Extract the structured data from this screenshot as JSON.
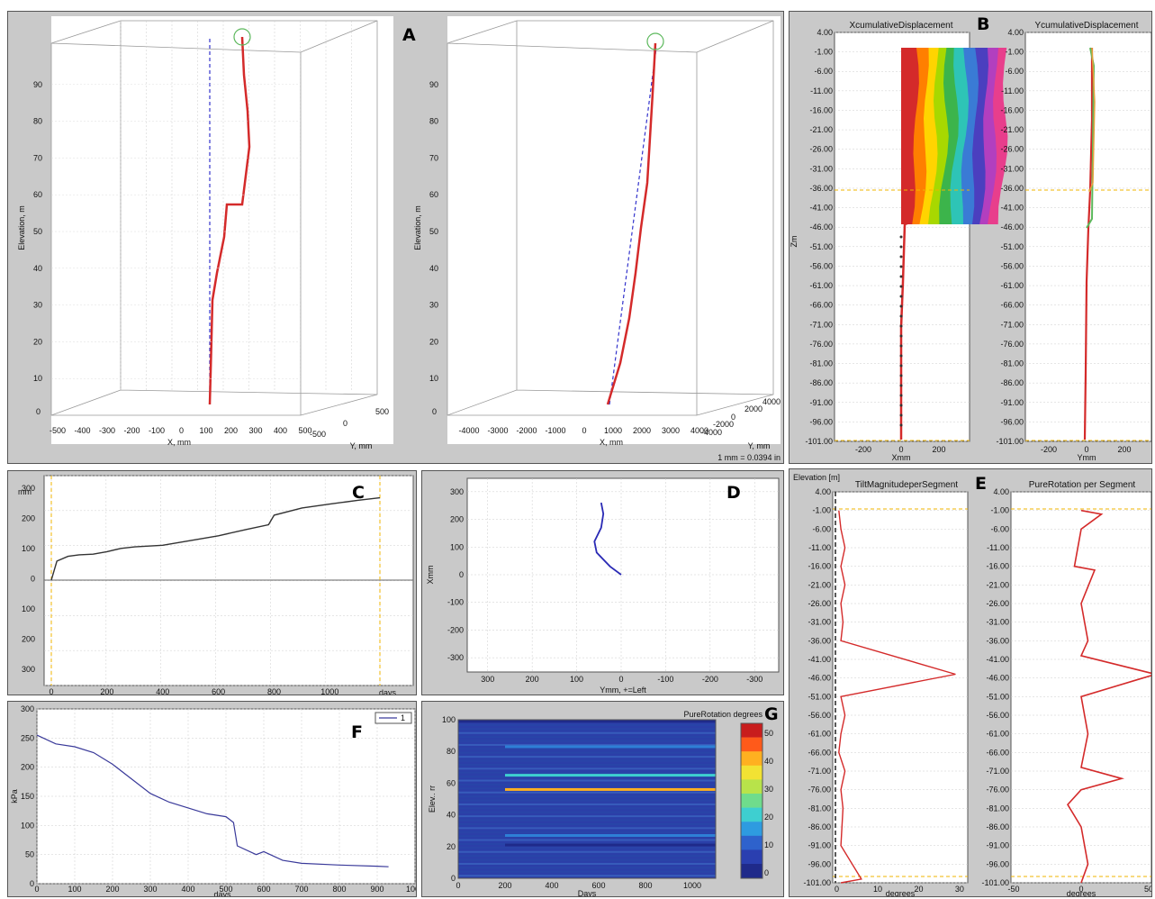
{
  "panels": {
    "A": {
      "letter": "A",
      "plot1": {
        "zlabel": "Elevation, m",
        "xlabel": "X, mm",
        "ylabel": "Y, mm",
        "zticks": [
          "0",
          "10",
          "20",
          "30",
          "40",
          "50",
          "60",
          "70",
          "80",
          "90"
        ],
        "xticks": [
          "-500",
          "-400",
          "-300",
          "-200",
          "-100",
          "0",
          "100",
          "200",
          "300",
          "400",
          "500"
        ],
        "yticks": [
          "-500",
          "0",
          "500"
        ]
      },
      "plot2": {
        "zlabel": "Elevation, m",
        "xlabel": "X, mm",
        "ylabel": "Y, mm",
        "zticks": [
          "0",
          "10",
          "20",
          "30",
          "40",
          "50",
          "60",
          "70",
          "80",
          "90"
        ],
        "xticks": [
          "-4000",
          "-3000",
          "-2000",
          "-1000",
          "0",
          "1000",
          "2000",
          "3000",
          "4000"
        ],
        "yticks": [
          "-4000",
          "-2000",
          "0",
          "2000",
          "4000"
        ],
        "scale_note": "1 mm = 0.0394 in"
      }
    },
    "B": {
      "letter": "B",
      "left_title": "XcumulativeDisplacement",
      "right_title": "YcumulativeDisplacement",
      "left_xlabel": "Xmm",
      "right_xlabel": "Ymm",
      "ylabel": "Zm",
      "yticks": [
        "4.00",
        "-1.00",
        "-6.00",
        "-11.00",
        "-16.00",
        "-21.00",
        "-26.00",
        "-31.00",
        "-36.00",
        "-41.00",
        "-46.00",
        "-51.00",
        "-56.00",
        "-61.00",
        "-66.00",
        "-71.00",
        "-76.00",
        "-81.00",
        "-86.00",
        "-91.00",
        "-96.00",
        "-101.00"
      ],
      "xticks": [
        "-200",
        "0",
        "200"
      ]
    },
    "C": {
      "letter": "C",
      "yunit": "mm",
      "xunit": "days",
      "yticks": [
        "300",
        "200",
        "100",
        "0",
        "100",
        "200",
        "300"
      ],
      "xticks": [
        "0",
        "200",
        "400",
        "600",
        "800",
        "1000"
      ]
    },
    "D": {
      "letter": "D",
      "ylabel": "Xmm",
      "xlabel": "Ymm, +=Left",
      "yticks": [
        "300",
        "200",
        "100",
        "0",
        "-100",
        "-200",
        "-300"
      ],
      "xticks": [
        "300",
        "200",
        "100",
        "0",
        "-100",
        "-200",
        "-300"
      ]
    },
    "E": {
      "letter": "E",
      "ylabel": "Elevation [m]",
      "left_title": "TiltMagnitudeperSegment",
      "right_title": "PureRotation per Segment",
      "left_xlabel": "degrees",
      "right_xlabel": "degrees",
      "left_xticks": [
        "0",
        "10",
        "20",
        "30"
      ],
      "right_xticks": [
        "-50",
        "0",
        "50"
      ],
      "yticks": [
        "4.00",
        "-1.00",
        "-6.00",
        "-11.00",
        "-16.00",
        "-21.00",
        "-26.00",
        "-31.00",
        "-36.00",
        "-41.00",
        "-46.00",
        "-51.00",
        "-56.00",
        "-61.00",
        "-66.00",
        "-71.00",
        "-76.00",
        "-81.00",
        "-86.00",
        "-91.00",
        "-96.00",
        "-101.00"
      ]
    },
    "F": {
      "letter": "F",
      "ylabel": "kPa",
      "xlabel": "days",
      "legend": "1",
      "yticks": [
        "0",
        "50",
        "100",
        "150",
        "200",
        "250",
        "300"
      ],
      "xticks": [
        "0",
        "100",
        "200",
        "300",
        "400",
        "500",
        "600",
        "700",
        "800",
        "900",
        "1000"
      ]
    },
    "G": {
      "letter": "G",
      "title": "PureRotation  degrees",
      "ylabel": "Elev.. rr",
      "xlabel": "Days",
      "yticks": [
        "0",
        "20",
        "40",
        "60",
        "80",
        "100"
      ],
      "xticks": [
        "0",
        "200",
        "400",
        "600",
        "800",
        "1000"
      ],
      "cbar_ticks": [
        "50",
        "40",
        "30",
        "20",
        "10",
        "0"
      ]
    }
  },
  "colors": {
    "panel_bg": "#c9c9c9",
    "plot_bg": "#ffffff",
    "red_trace": "#d42a2a",
    "blue_trace": "#2a2ab5",
    "dashed_yellow": "#f0b400"
  },
  "chart_data": [
    {
      "type": "line",
      "panel": "A-left",
      "zlabel": "Elevation, m",
      "xlabel": "X, mm",
      "ylabel": "Y, mm",
      "xlim": [
        -500,
        500
      ],
      "ylim": [
        -500,
        500
      ],
      "zlim": [
        0,
        100
      ],
      "elevation": [
        2,
        10,
        20,
        30,
        40,
        50,
        56,
        57,
        60,
        70,
        80,
        90,
        98
      ],
      "x": [
        0,
        2,
        4,
        6,
        20,
        40,
        55,
        120,
        125,
        140,
        150,
        130,
        120
      ]
    },
    {
      "type": "line",
      "panel": "A-right",
      "zlabel": "Elevation, m",
      "xlabel": "X, mm",
      "ylabel": "Y, mm",
      "xlim": [
        -4000,
        4000
      ],
      "ylim": [
        -4000,
        4000
      ],
      "zlim": [
        0,
        100
      ],
      "elevation": [
        2,
        20,
        40,
        60,
        80,
        98
      ],
      "x": [
        0,
        300,
        700,
        1100,
        1500,
        1900
      ]
    },
    {
      "type": "line",
      "panel": "C",
      "xlabel": "days",
      "ylabel": "mm",
      "xlim": [
        0,
        1200
      ],
      "ylim": [
        -330,
        330
      ],
      "x": [
        0,
        20,
        60,
        100,
        150,
        200,
        250,
        300,
        400,
        500,
        600,
        700,
        780,
        800,
        900,
        1000,
        1100,
        1180
      ],
      "y": [
        0,
        60,
        75,
        80,
        82,
        90,
        100,
        105,
        110,
        125,
        140,
        160,
        175,
        205,
        228,
        240,
        252,
        260
      ]
    },
    {
      "type": "line",
      "panel": "D",
      "xlabel": "Ymm, +=Left",
      "ylabel": "Xmm",
      "xlim": [
        350,
        -350
      ],
      "ylim": [
        -350,
        350
      ],
      "x": [
        0,
        25,
        55,
        60,
        45,
        40,
        45
      ],
      "y": [
        0,
        30,
        80,
        120,
        170,
        220,
        260
      ]
    },
    {
      "type": "line",
      "panel": "F",
      "xlabel": "days",
      "ylabel": "kPa",
      "xlim": [
        0,
        1000
      ],
      "ylim": [
        0,
        300
      ],
      "series": [
        {
          "name": "1",
          "x": [
            0,
            50,
            100,
            150,
            200,
            250,
            300,
            350,
            400,
            450,
            500,
            520,
            530,
            580,
            600,
            650,
            700,
            800,
            900,
            930
          ],
          "y": [
            255,
            240,
            235,
            225,
            205,
            180,
            155,
            140,
            130,
            120,
            115,
            105,
            65,
            50,
            55,
            40,
            35,
            32,
            30,
            29
          ]
        }
      ]
    },
    {
      "type": "line",
      "panel": "E-left",
      "title": "TiltMagnitudeperSegment",
      "xlabel": "degrees",
      "xlim": [
        -1,
        32
      ],
      "ylim": [
        -101,
        4
      ],
      "x": [
        0.5,
        1,
        2,
        1,
        2,
        1,
        1.5,
        1,
        29,
        1,
        2,
        1,
        0.5,
        2,
        1,
        1.5,
        1,
        6,
        1
      ],
      "y": [
        -1,
        -6,
        -11,
        -16,
        -21,
        -26,
        -31,
        -36,
        -45,
        -51,
        -56,
        -61,
        -66,
        -71,
        -76,
        -81,
        -91,
        -100,
        -101
      ]
    },
    {
      "type": "line",
      "panel": "E-right",
      "title": "PureRotation per Segment",
      "xlabel": "degrees",
      "xlim": [
        -52,
        52
      ],
      "ylim": [
        -101,
        4
      ],
      "x": [
        0,
        15,
        0,
        -5,
        10,
        0,
        5,
        0,
        55,
        0,
        5,
        0,
        30,
        0,
        -10,
        0,
        5,
        0
      ],
      "y": [
        -1,
        -2,
        -6,
        -16,
        -17,
        -26,
        -36,
        -40,
        -45,
        -51,
        -61,
        -70,
        -73,
        -76,
        -80,
        -86,
        -96,
        -101
      ]
    },
    {
      "type": "heatmap",
      "panel": "G",
      "title": "PureRotation  degrees",
      "xlabel": "Days",
      "ylabel": "Elev.. rr",
      "xlim": [
        0,
        1100
      ],
      "ylim": [
        0,
        100
      ],
      "colorbar": [
        0,
        50
      ],
      "bands": [
        {
          "elev": 99,
          "value": 8
        },
        {
          "elev": 83,
          "value": 12
        },
        {
          "elev": 65,
          "value": 20
        },
        {
          "elev": 56,
          "value": 45
        },
        {
          "elev": 27,
          "value": 18
        },
        {
          "elev": 21,
          "value": 2
        }
      ]
    },
    {
      "type": "line",
      "panel": "B-left",
      "title": "XcumulativeDisplacement",
      "xlabel": "Xmm",
      "ylabel": "Zm",
      "xlim": [
        -300,
        320
      ],
      "ylim": [
        -101,
        4
      ],
      "series": [
        {
          "name": "",
          "x": [
            0,
            5,
            10,
            40,
            0
          ],
          "y": [
            -101,
            -80,
            -60,
            -46,
            -46
          ]
        },
        {
          "name": "",
          "x": [
            250,
            230,
            240,
            250,
            230
          ],
          "y": [
            -1,
            -16,
            -31,
            -36,
            -46
          ]
        }
      ]
    },
    {
      "type": "line",
      "panel": "B-right",
      "title": "YcumulativeDisplacement",
      "xlabel": "Ymm",
      "ylabel": "",
      "xlim": [
        -300,
        320
      ],
      "ylim": [
        -101,
        4
      ],
      "series": [
        {
          "name": "",
          "x": [
            0,
            3,
            5,
            30,
            40,
            50
          ],
          "y": [
            -101,
            -80,
            -60,
            -46,
            -36,
            -1
          ]
        }
      ]
    }
  ]
}
